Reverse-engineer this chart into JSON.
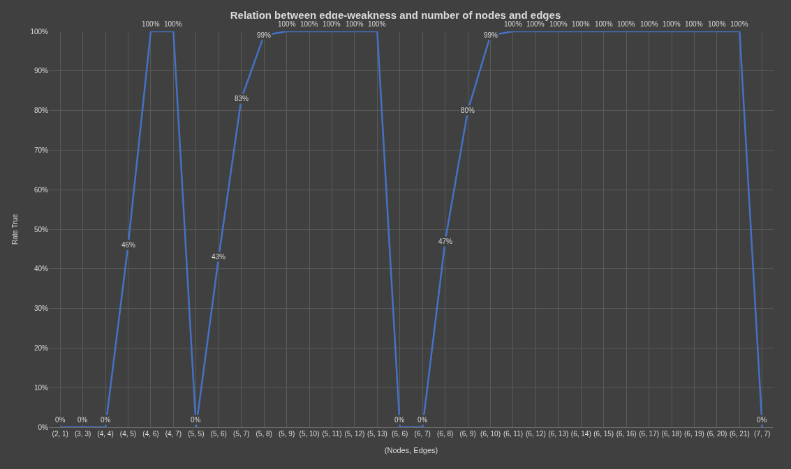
{
  "chart_data": {
    "type": "line",
    "title": "Relation between edge-weakness and number of nodes and edges",
    "xlabel": "(Nodes, Edges)",
    "ylabel": "Rate True",
    "categories": [
      "(2, 1)",
      "(3, 3)",
      "(4, 4)",
      "(4, 5)",
      "(4, 6)",
      "(4, 7)",
      "(5, 5)",
      "(5, 6)",
      "(5, 7)",
      "(5, 8)",
      "(5, 9)",
      "(5, 10)",
      "(5, 11)",
      "(5, 12)",
      "(5, 13)",
      "(6, 6)",
      "(6, 7)",
      "(6, 8)",
      "(6, 9)",
      "(6, 10)",
      "(6, 11)",
      "(6, 12)",
      "(6, 13)",
      "(6, 14)",
      "(6, 15)",
      "(6, 16)",
      "(6, 17)",
      "(6, 18)",
      "(6, 19)",
      "(6, 20)",
      "(6, 21)",
      "(7, 7)"
    ],
    "series": [
      {
        "color": "#4472c4",
        "values": [
          0,
          0,
          0,
          46,
          100,
          100,
          0,
          43,
          83,
          99,
          100,
          100,
          100,
          100,
          100,
          0,
          0,
          47,
          80,
          99,
          100,
          100,
          100,
          100,
          100,
          100,
          100,
          100,
          100,
          100,
          100,
          0
        ],
        "value_labels": [
          "0%",
          "0%",
          "0%",
          "46%",
          "100%",
          "100%",
          "0%",
          "43%",
          "83%",
          "99%",
          "100%",
          "100%",
          "100%",
          "100%",
          "100%",
          "0%",
          "0%",
          "47%",
          "80%",
          "99%",
          "100%",
          "100%",
          "100%",
          "100%",
          "100%",
          "100%",
          "100%",
          "100%",
          "100%",
          "100%",
          "100%",
          "0%"
        ]
      }
    ],
    "ylim": [
      0,
      100
    ],
    "yticks": [
      {
        "value": 0,
        "label": "0%"
      },
      {
        "value": 10,
        "label": "10%"
      },
      {
        "value": 20,
        "label": "20%"
      },
      {
        "value": 30,
        "label": "30%"
      },
      {
        "value": 40,
        "label": "40%"
      },
      {
        "value": 50,
        "label": "50%"
      },
      {
        "value": 60,
        "label": "60%"
      },
      {
        "value": 70,
        "label": "70%"
      },
      {
        "value": 80,
        "label": "80%"
      },
      {
        "value": 90,
        "label": "90%"
      },
      {
        "value": 100,
        "label": "100%"
      }
    ],
    "grid": true,
    "marker": "none",
    "line_style": "solid"
  }
}
